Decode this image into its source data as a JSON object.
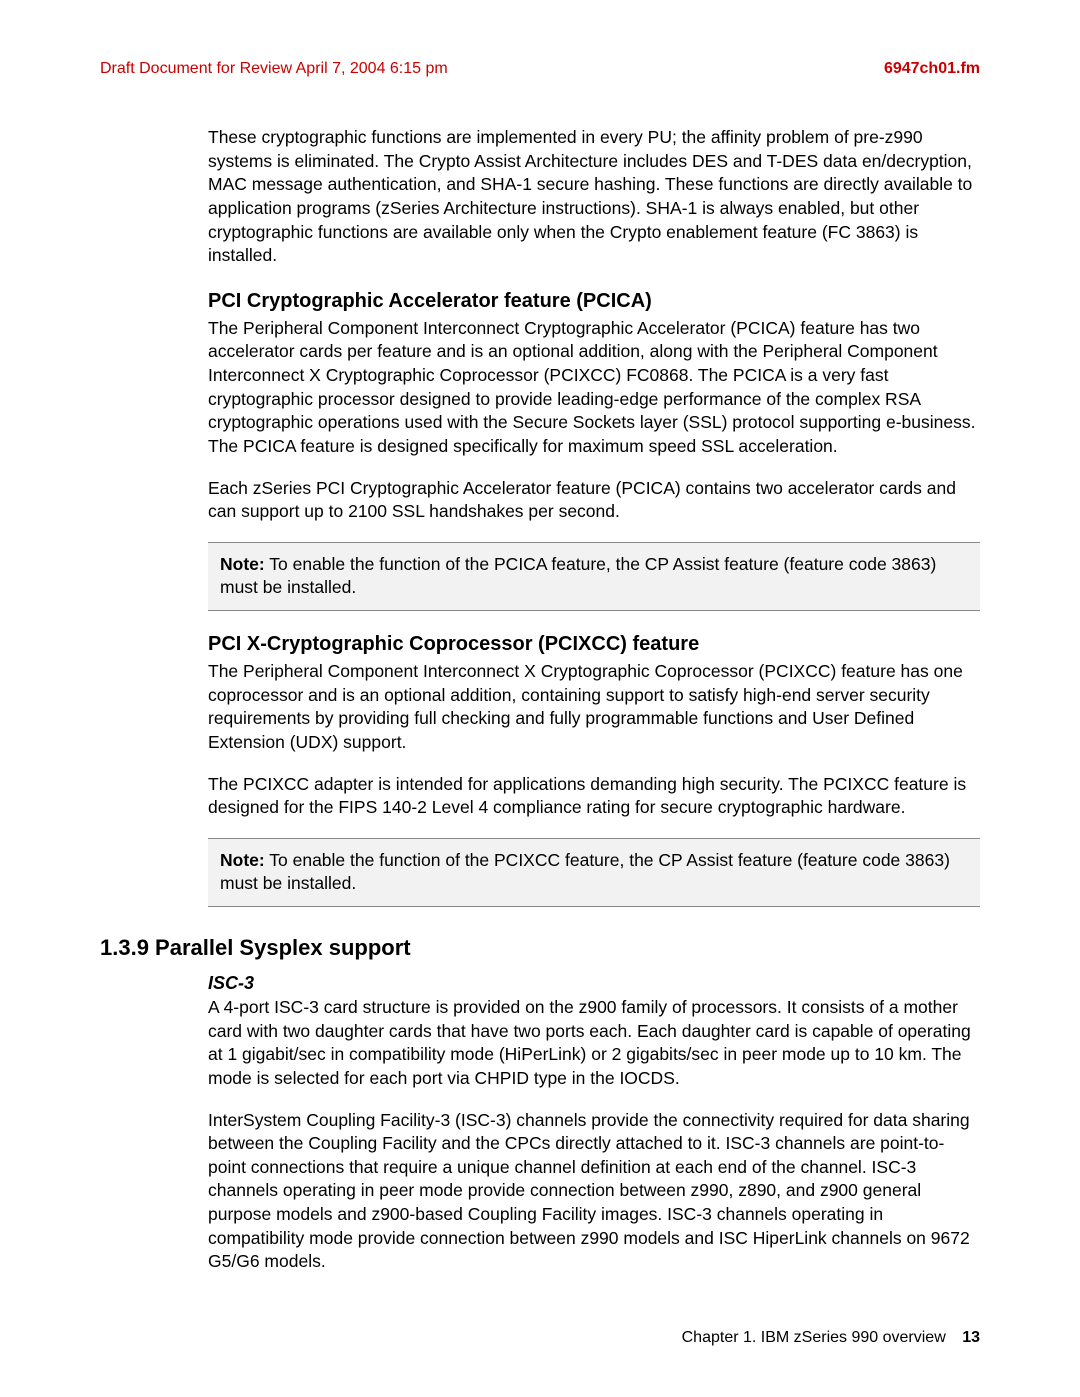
{
  "header": {
    "draft_line": "Draft Document for Review April 7, 2004 6:15 pm",
    "filename": "6947ch01.fm"
  },
  "intro_para": "These cryptographic functions are implemented in every PU; the affinity problem of pre-z990 systems is eliminated. The Crypto Assist Architecture includes DES and T-DES data en/decryption, MAC message authentication, and SHA-1 secure hashing. These functions are directly available to application programs (zSeries Architecture instructions). SHA-1 is always enabled, but other cryptographic functions are available only when the Crypto enablement feature (FC 3863) is installed.",
  "section_pcica": {
    "heading": "PCI Cryptographic Accelerator feature (PCICA)",
    "para1": "The Peripheral Component Interconnect Cryptographic Accelerator (PCICA) feature has two accelerator cards per feature and is an optional addition, along with the Peripheral Component Interconnect X Cryptographic Coprocessor (PCIXCC) FC0868. The PCICA is a very fast cryptographic processor designed to provide leading-edge performance of the complex RSA cryptographic operations used with the Secure Sockets layer (SSL) protocol supporting e-business. The PCICA feature is designed specifically for maximum speed SSL acceleration.",
    "para2": "Each zSeries PCI Cryptographic Accelerator feature (PCICA) contains two accelerator cards and can support up to 2100 SSL handshakes per second.",
    "note_label": "Note:",
    "note_text": " To enable the function of the PCICA feature, the CP Assist feature (feature code 3863) must be installed."
  },
  "section_pcixcc": {
    "heading": "PCI X-Cryptographic Coprocessor (PCIXCC) feature",
    "para1": "The Peripheral Component Interconnect X Cryptographic Coprocessor (PCIXCC) feature has one coprocessor and is an optional addition, containing support to satisfy high-end server security requirements by providing full checking and fully programmable functions and User Defined Extension (UDX) support.",
    "para2": "The PCIXCC adapter is intended for applications demanding high security. The PCIXCC feature is designed for the FIPS 140-2 Level 4 compliance rating for secure cryptographic hardware.",
    "note_label": "Note:",
    "note_text": " To enable the function of the PCIXCC feature, the CP Assist feature (feature code 3863) must be installed."
  },
  "section_sysplex": {
    "heading": "1.3.9  Parallel Sysplex support",
    "sub_heading": "ISC-3",
    "para1": "A 4-port ISC-3 card structure is provided on the z900 family of processors. It consists of a mother card with two daughter cards that have two ports each. Each daughter card is capable of operating at 1 gigabit/sec in compatibility mode (HiPerLink) or 2 gigabits/sec in peer mode up to 10 km. The mode is selected for each port via CHPID type in the IOCDS.",
    "para2": "InterSystem Coupling Facility-3 (ISC-3) channels provide the connectivity required for data sharing between the Coupling Facility and the CPCs directly attached to it. ISC-3 channels are point-to-point connections that require a unique channel definition at each end of the channel. ISC-3 channels operating in peer mode provide connection between z990, z890, and z900 general purpose models and z900-based Coupling Facility images. ISC-3 channels operating in compatibility mode provide connection between z990 models and ISC HiperLink channels on 9672 G5/G6 models."
  },
  "footer": {
    "chapter": "Chapter 1. IBM zSeries 990 overview",
    "page": "13"
  }
}
